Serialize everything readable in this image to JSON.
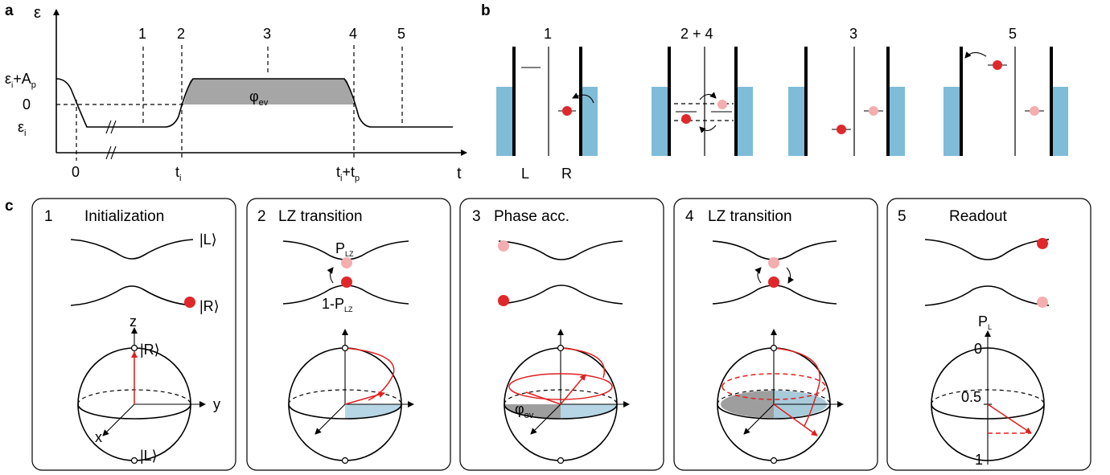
{
  "panel_labels": {
    "a": "a",
    "b": "b",
    "c": "c"
  },
  "panel_a": {
    "y_axis_symbol": "ε",
    "x_axis_symbol": "t",
    "step_labels": [
      "1",
      "2",
      "3",
      "4",
      "5"
    ],
    "y_tick_amp_base": "ε",
    "y_tick_amp_sub": "i",
    "y_tick_amp_plus": "+A",
    "y_tick_amp_sub2": "p",
    "y_tick_zero": "0",
    "y_tick_init_base": "ε",
    "y_tick_init_sub": "i",
    "x_tick_zero": "0",
    "x_tick_ti_base": "t",
    "x_tick_ti_sub": "i",
    "x_tick_end_base": "t",
    "x_tick_end_sub": "i",
    "x_tick_end_plus": "+t",
    "x_tick_end_sub2": "p",
    "phase_base": "φ",
    "phase_sub": "ev",
    "colors": {
      "phase_fill": "#a6a6a6"
    }
  },
  "panel_b": {
    "diagram_titles": [
      "1",
      "2 + 4",
      "3",
      "5"
    ],
    "left_dot_label": "L",
    "right_dot_label": "R",
    "colors": {
      "reservoir": "#7fbcd8",
      "electron": "#e0282c",
      "electron_faded": "#f4aeb0"
    }
  },
  "panel_c": {
    "boxes": [
      {
        "number": "1",
        "title": "Initialization"
      },
      {
        "number": "2",
        "title": "LZ transition"
      },
      {
        "number": "3",
        "title": "Phase acc."
      },
      {
        "number": "4",
        "title": "LZ transition"
      },
      {
        "number": "5",
        "title": "Readout"
      }
    ],
    "ket_L": "|L⟩",
    "ket_R": "|R⟩",
    "axis_x": "x",
    "axis_y": "y",
    "axis_z": "z",
    "plz_base": "P",
    "plz_sub": "LZ",
    "one_minus_base": "1-P",
    "one_minus_sub": "LZ",
    "phase_base": "φ",
    "phase_sub": "ev",
    "pl_base": "P",
    "pl_sub": "L",
    "pl_ticks": [
      "0",
      "0.5",
      "1"
    ],
    "colors": {
      "vector": "#e02020",
      "shade_blue": "#a9cfe0",
      "shade_grey": "#9e9e9e"
    }
  }
}
